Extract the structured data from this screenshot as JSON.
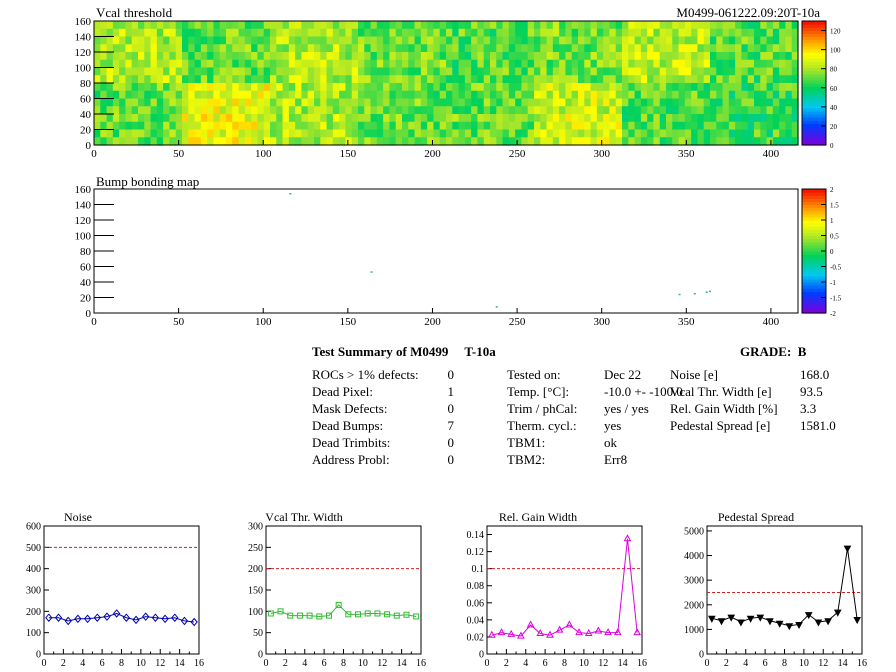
{
  "top_plot": {
    "title": "Vcal threshold",
    "right_label": "M0499-061222.09:20T-10a",
    "x_ticks": [
      "0",
      "50",
      "100",
      "150",
      "200",
      "250",
      "300",
      "350",
      "400"
    ],
    "y_ticks": [
      "0",
      "20",
      "40",
      "60",
      "80",
      "100",
      "120",
      "140",
      "160"
    ],
    "z_ticks": [
      "0",
      "20",
      "40",
      "60",
      "80",
      "100",
      "120"
    ]
  },
  "bump_plot": {
    "title": "Bump bonding map",
    "x_ticks": [
      "0",
      "50",
      "100",
      "150",
      "200",
      "250",
      "300",
      "350",
      "400"
    ],
    "y_ticks": [
      "0",
      "20",
      "40",
      "60",
      "80",
      "100",
      "120",
      "140",
      "160"
    ],
    "z_ticks": [
      "-2",
      "-1.5",
      "-1",
      "-0.5",
      "0",
      "0.5",
      "1",
      "1.5",
      "2"
    ]
  },
  "summary": {
    "title": "Test Summary of M0499     T-10a",
    "grade": "GRADE:  B",
    "col1": [
      {
        "label": "ROCs > 1% defects:",
        "value": "0"
      },
      {
        "label": "Dead Pixel:",
        "value": "1"
      },
      {
        "label": "Mask Defects:",
        "value": "0"
      },
      {
        "label": "Dead Bumps:",
        "value": "7"
      },
      {
        "label": "Dead Trimbits:",
        "value": "0"
      },
      {
        "label": "Address Probl:",
        "value": "0"
      }
    ],
    "col2": [
      {
        "label": "Tested on:",
        "value": "Dec 22"
      },
      {
        "label": "Temp. [°C]:",
        "value": "-10.0 +- -100.0"
      },
      {
        "label": "Trim / phCal:",
        "value": "yes / yes"
      },
      {
        "label": "Therm. cycl.:",
        "value": "yes"
      },
      {
        "label": "TBM1:",
        "value": "ok"
      },
      {
        "label": "TBM2:",
        "value": "Err8"
      }
    ],
    "col3": [
      {
        "label": "Noise [e]",
        "value": "168.0"
      },
      {
        "label": "Vcal Thr. Width [e]",
        "value": "93.5"
      },
      {
        "label": "Rel. Gain Width [%]",
        "value": "3.3"
      },
      {
        "label": "Pedestal Spread [e]",
        "value": "1581.0"
      }
    ]
  },
  "chart_data": [
    {
      "type": "heatmap",
      "title": "Vcal threshold",
      "xlim": [
        0,
        416
      ],
      "ylim": [
        0,
        160
      ],
      "zlim": [
        0,
        130
      ],
      "roc_means": [
        [
          80,
          70,
          80,
          72,
          68,
          72,
          82,
          68
        ],
        [
          70,
          90,
          80,
          70,
          70,
          85,
          68,
          65
        ]
      ],
      "colormap": "rainbow"
    },
    {
      "type": "scatter",
      "title": "Bump bonding map",
      "xlim": [
        0,
        416
      ],
      "ylim": [
        0,
        160
      ],
      "points": [
        [
          116,
          154
        ],
        [
          164,
          53
        ],
        [
          238,
          8
        ],
        [
          346,
          24
        ],
        [
          355,
          25
        ],
        [
          364,
          28
        ],
        [
          362,
          27
        ]
      ]
    },
    {
      "type": "line",
      "title": "Noise",
      "xlim": [
        0,
        16
      ],
      "ylim": [
        0,
        600
      ],
      "threshold": 500,
      "x_ticks": [
        "0",
        "2",
        "4",
        "6",
        "8",
        "10",
        "12",
        "14",
        "16"
      ],
      "y_ticks": [
        "0",
        "100",
        "200",
        "300",
        "400",
        "500",
        "600"
      ],
      "color": "#0000aa",
      "marker": "diamond",
      "x": [
        0,
        1,
        2,
        3,
        4,
        5,
        6,
        7,
        8,
        9,
        10,
        11,
        12,
        13,
        14,
        15
      ],
      "values": [
        170,
        170,
        155,
        165,
        165,
        170,
        175,
        190,
        170,
        160,
        175,
        170,
        165,
        170,
        155,
        150
      ]
    },
    {
      "type": "line",
      "title": "Vcal Thr. Width",
      "xlim": [
        0,
        16
      ],
      "ylim": [
        0,
        300
      ],
      "threshold": 200,
      "x_ticks": [
        "0",
        "2",
        "4",
        "6",
        "8",
        "10",
        "12",
        "14",
        "16"
      ],
      "y_ticks": [
        "0",
        "50",
        "100",
        "150",
        "200",
        "250",
        "300"
      ],
      "color": "#33bb33",
      "marker": "square",
      "x": [
        0,
        1,
        2,
        3,
        4,
        5,
        6,
        7,
        8,
        9,
        10,
        11,
        12,
        13,
        14,
        15
      ],
      "values": [
        95,
        100,
        90,
        90,
        90,
        88,
        90,
        115,
        93,
        93,
        95,
        95,
        93,
        90,
        92,
        88
      ]
    },
    {
      "type": "line",
      "title": "Rel. Gain Width",
      "xlim": [
        0,
        16
      ],
      "ylim": [
        0,
        0.15
      ],
      "threshold": 0.1,
      "x_ticks": [
        "0",
        "2",
        "4",
        "6",
        "8",
        "10",
        "12",
        "14",
        "16"
      ],
      "y_ticks": [
        "0",
        "0.02",
        "0.04",
        "0.06",
        "0.08",
        "0.1",
        "0.12",
        "0.14"
      ],
      "color": "#dd00dd",
      "marker": "triangle",
      "x": [
        0,
        1,
        2,
        3,
        4,
        5,
        6,
        7,
        8,
        9,
        10,
        11,
        12,
        13,
        14,
        15
      ],
      "values": [
        0.022,
        0.025,
        0.023,
        0.021,
        0.034,
        0.024,
        0.022,
        0.028,
        0.034,
        0.025,
        0.024,
        0.027,
        0.025,
        0.025,
        0.135,
        0.025
      ]
    },
    {
      "type": "line",
      "title": "Pedestal Spread",
      "xlim": [
        0,
        16
      ],
      "ylim": [
        0,
        5200
      ],
      "threshold": 2500,
      "x_ticks": [
        "0",
        "2",
        "4",
        "6",
        "8",
        "10",
        "12",
        "14",
        "16"
      ],
      "y_ticks": [
        "0",
        "1000",
        "2000",
        "3000",
        "4000",
        "5000"
      ],
      "color": "#000000",
      "marker": "invtriangle",
      "x": [
        0,
        1,
        2,
        3,
        4,
        5,
        6,
        7,
        8,
        9,
        10,
        11,
        12,
        13,
        14,
        15
      ],
      "values": [
        1450,
        1350,
        1500,
        1300,
        1450,
        1500,
        1350,
        1250,
        1150,
        1200,
        1600,
        1300,
        1350,
        1700,
        4300,
        1400
      ]
    }
  ]
}
